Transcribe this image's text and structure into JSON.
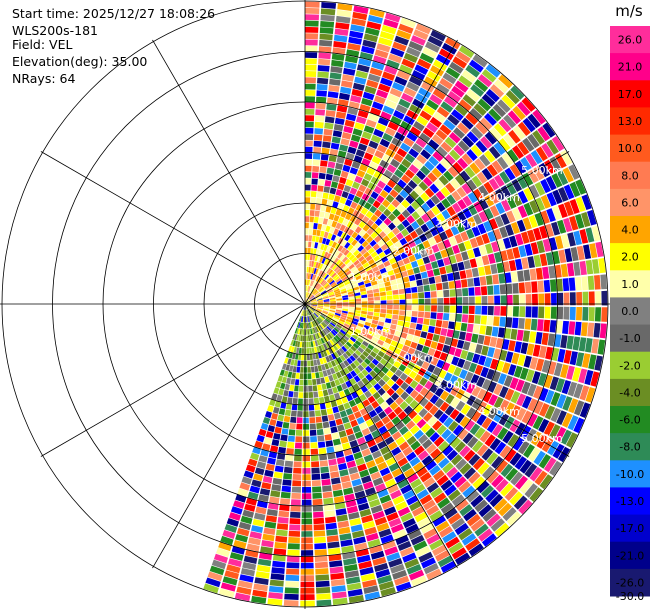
{
  "info": {
    "start_time": "Start time: 2025/12/27 18:08:26",
    "site": "WLS200s-181",
    "field": "Field: VEL",
    "elevation": "Elevation(deg): 35.00",
    "nrays": "NRays: 64"
  },
  "chart_data": {
    "type": "heatmap",
    "projection": "polar-ppi",
    "sector": {
      "from_deg": 0,
      "to_deg": 200,
      "direction": "clockwise-from-north"
    },
    "range_rings_km": [
      1,
      2,
      3,
      4,
      5,
      6
    ],
    "range_labels": [
      "1.00km",
      "2.00km",
      "3.00km",
      "4.00km",
      "5.00km",
      "6.00km"
    ],
    "ray_count": 64,
    "gate_count": 48,
    "spoke_angles_deg": [
      0,
      30,
      60,
      90,
      120,
      150,
      180,
      210,
      240,
      270,
      300,
      330
    ],
    "colorbar": {
      "unit": "m/s",
      "tick_labels": [
        "26.0",
        "21.0",
        "17.0",
        "13.0",
        "10.0",
        "8.0",
        "6.0",
        "4.0",
        "2.0",
        "1.0",
        "0.0",
        "-1.0",
        "-2.0",
        "-4.0",
        "-6.0",
        "-8.0",
        "-10.0",
        "-13.0",
        "-17.0",
        "-21.0",
        "-26.0",
        "-30.0"
      ],
      "colors": [
        "#ff2d9b",
        "#ff008a",
        "#ff0000",
        "#ff2a00",
        "#ff5a1e",
        "#ff7b52",
        "#ff9468",
        "#ffa500",
        "#ffff00",
        "#ffffaa",
        "#808080",
        "#696969",
        "#9acd32",
        "#6b8e23",
        "#228b22",
        "#2e8b57",
        "#1e90ff",
        "#0000ff",
        "#0000cd",
        "#00008b",
        "#191970"
      ]
    }
  }
}
